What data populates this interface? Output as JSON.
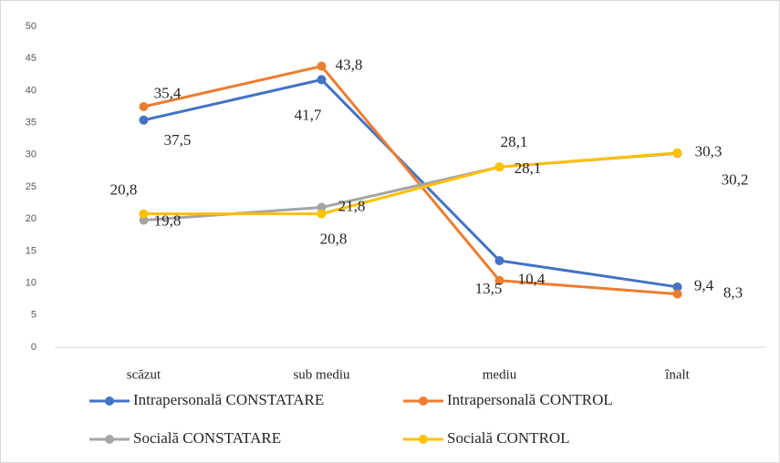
{
  "chart_data": {
    "type": "line",
    "categories": [
      "scăzut",
      "sub mediu",
      "mediu",
      "înalt"
    ],
    "ylim": [
      0,
      50
    ],
    "yticks": [
      0,
      5,
      10,
      15,
      20,
      25,
      30,
      35,
      40,
      45,
      50
    ],
    "legend": "bottom",
    "series": [
      {
        "name": "Intrapersonală CONSTATARE",
        "color": "#4472c4",
        "values": [
          35.4,
          41.7,
          13.5,
          9.4
        ],
        "value_labels": [
          "35,4",
          "41,7",
          "13,5",
          "9,4"
        ]
      },
      {
        "name": "Intrapersonală CONTROL",
        "color": "#ed7d31",
        "values": [
          37.5,
          43.8,
          10.4,
          8.3
        ],
        "value_labels": [
          "37,5",
          "43,8",
          "10,4",
          "8,3"
        ]
      },
      {
        "name": "Socială CONSTATARE",
        "color": "#a5a5a5",
        "values": [
          19.8,
          21.8,
          28.1,
          30.2
        ],
        "value_labels": [
          "19,8",
          "21,8",
          "28,1",
          "30,2"
        ]
      },
      {
        "name": "Socială CONTROL",
        "color": "#ffc000",
        "values": [
          20.8,
          20.8,
          28.1,
          30.3
        ],
        "value_labels": [
          "20,8",
          "20,8",
          "28,1",
          "30,3"
        ]
      }
    ]
  }
}
